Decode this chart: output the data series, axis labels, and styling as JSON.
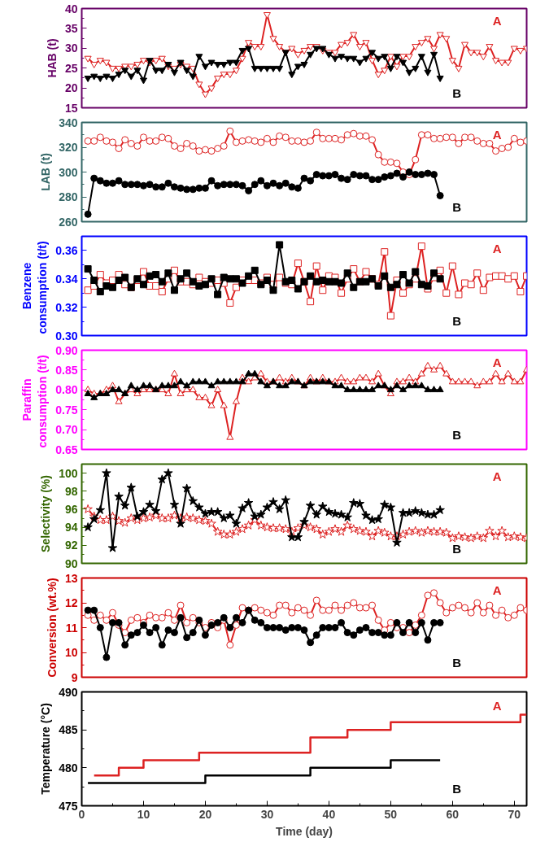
{
  "chart_data": [
    {
      "type": "line",
      "ylabel": "HAB (t)",
      "marker": "triangle_down",
      "xlim": [
        0,
        72
      ],
      "ylim": [
        15,
        40
      ],
      "yticks": [
        15,
        20,
        25,
        30,
        35,
        40
      ],
      "tick_labels": "y",
      "x": [
        1,
        2,
        3,
        4,
        5,
        6,
        7,
        8,
        9,
        10,
        11,
        12,
        13,
        14,
        15,
        16,
        17,
        18,
        19,
        20,
        21,
        22,
        23,
        24,
        25,
        26,
        27,
        28,
        29,
        30,
        31,
        32,
        33,
        34,
        35,
        36,
        37,
        38,
        39,
        40,
        41,
        42,
        43,
        44,
        45,
        46,
        47,
        48,
        49,
        50,
        51,
        52,
        53,
        54,
        55,
        56,
        57,
        58,
        59,
        60,
        61,
        62,
        63,
        64,
        65,
        66,
        67,
        68,
        69,
        70,
        71,
        72
      ],
      "series": [
        {
          "name": "A",
          "color": "#dd2222",
          "values": [
            27.5,
            26,
            27,
            26.5,
            25,
            25,
            25.5,
            25.5,
            26,
            27,
            26.5,
            27,
            27.5,
            25.5,
            25,
            26,
            25.5,
            25,
            21,
            18.5,
            20,
            22.5,
            23.5,
            23.5,
            24.5,
            27.5,
            31.5,
            30.5,
            30.5,
            38.5,
            32.5,
            30.5,
            29,
            30,
            28.5,
            29.5,
            30.5,
            30.5,
            29.5,
            29,
            29,
            31,
            31.5,
            33.5,
            30.5,
            31.5,
            27,
            23.5,
            24.5,
            28,
            25.5,
            28,
            28,
            30.5,
            31.5,
            32.5,
            30,
            33.5,
            32.5,
            27,
            25,
            31,
            29,
            29,
            28,
            30.5,
            27,
            26.5,
            26.5,
            30,
            29.5,
            30
          ]
        },
        {
          "name": "B",
          "color": "#000000",
          "x": [
            1,
            2,
            3,
            4,
            5,
            6,
            7,
            8,
            9,
            10,
            11,
            12,
            13,
            14,
            15,
            16,
            17,
            18,
            19,
            20,
            21,
            22,
            23,
            24,
            25,
            26,
            27,
            28,
            29,
            30,
            31,
            32,
            33,
            34,
            35,
            36,
            37,
            38,
            39,
            40,
            41,
            42,
            43,
            44,
            45,
            46,
            47,
            48,
            49,
            50,
            51,
            52,
            53,
            54,
            55,
            56,
            57,
            58
          ],
          "values": [
            22.5,
            23,
            22.5,
            23,
            22.5,
            23.5,
            24.5,
            23,
            24.5,
            22,
            27,
            24.5,
            24.5,
            26,
            24,
            26.5,
            24.5,
            23,
            28,
            25.5,
            26.5,
            26,
            26,
            26.5,
            26.5,
            29.5,
            30,
            25,
            25,
            25,
            25,
            25,
            29,
            23.5,
            25.5,
            26,
            28.5,
            30,
            30,
            28.5,
            27.5,
            28,
            27.5,
            27.5,
            26.5,
            27.5,
            29,
            27.5,
            28,
            25,
            28,
            26.5,
            24,
            25,
            28,
            24,
            28.5,
            22.5
          ]
        }
      ]
    },
    {
      "type": "line",
      "ylabel": "LAB (t)",
      "marker": "circle",
      "xlim": [
        0,
        72
      ],
      "ylim": [
        260,
        340
      ],
      "yticks": [
        260,
        280,
        300,
        320,
        340
      ],
      "tick_labels": "y",
      "x": [
        1,
        2,
        3,
        4,
        5,
        6,
        7,
        8,
        9,
        10,
        11,
        12,
        13,
        14,
        15,
        16,
        17,
        18,
        19,
        20,
        21,
        22,
        23,
        24,
        25,
        26,
        27,
        28,
        29,
        30,
        31,
        32,
        33,
        34,
        35,
        36,
        37,
        38,
        39,
        40,
        41,
        42,
        43,
        44,
        45,
        46,
        47,
        48,
        49,
        50,
        51,
        52,
        53,
        54,
        55,
        56,
        57,
        58,
        59,
        60,
        61,
        62,
        63,
        64,
        65,
        66,
        67,
        68,
        69,
        70,
        71,
        72
      ],
      "series": [
        {
          "name": "A",
          "color": "#dd2222",
          "values": [
            325,
            325,
            328,
            325,
            324,
            319,
            326,
            323,
            321,
            328,
            325,
            325,
            328,
            327,
            321,
            319,
            323,
            321,
            317,
            318,
            317,
            319,
            321,
            333,
            324,
            325,
            326,
            325,
            324,
            327,
            324,
            329,
            328,
            325,
            325,
            324,
            325,
            332,
            327,
            327,
            327,
            326,
            330,
            331,
            329,
            329,
            326,
            314,
            308,
            308,
            307,
            300,
            298,
            310,
            330,
            330,
            327,
            327,
            328,
            328,
            323,
            328,
            328,
            325,
            323,
            323,
            317,
            319,
            320,
            327,
            324,
            325
          ]
        },
        {
          "name": "B",
          "color": "#000000",
          "x": [
            1,
            2,
            3,
            4,
            5,
            6,
            7,
            8,
            9,
            10,
            11,
            12,
            13,
            14,
            15,
            16,
            17,
            18,
            19,
            20,
            21,
            22,
            23,
            24,
            25,
            26,
            27,
            28,
            29,
            30,
            31,
            32,
            33,
            34,
            35,
            36,
            37,
            38,
            39,
            40,
            41,
            42,
            43,
            44,
            45,
            46,
            47,
            48,
            49,
            50,
            51,
            52,
            53,
            54,
            55,
            56,
            57,
            58
          ],
          "values": [
            266,
            295,
            293,
            291,
            291,
            293,
            290,
            290,
            290,
            289,
            290,
            288,
            288,
            291,
            288,
            287,
            286,
            286,
            287,
            287,
            293,
            289,
            290,
            290,
            290,
            289,
            285,
            290,
            293,
            289,
            291,
            289,
            291,
            288,
            287,
            295,
            293,
            298,
            297,
            297,
            298,
            295,
            294,
            298,
            297,
            297,
            294,
            294,
            296,
            297,
            299,
            296,
            300,
            298,
            298,
            299,
            298,
            281
          ]
        }
      ]
    },
    {
      "type": "line",
      "ylabel": "Benzene\nconsumption  (t/t)",
      "marker": "square",
      "xlim": [
        0,
        72
      ],
      "ylim": [
        0.3,
        0.37
      ],
      "yticks": [
        {
          "value": 0.3,
          "label": "0.30"
        },
        {
          "value": 0.32,
          "label": "0.32"
        },
        {
          "value": 0.34,
          "label": "0.34"
        },
        {
          "value": 0.36,
          "label": "0.36"
        }
      ],
      "tick_labels": "y",
      "x": [
        1,
        2,
        3,
        4,
        5,
        6,
        7,
        8,
        9,
        10,
        11,
        12,
        13,
        14,
        15,
        16,
        17,
        18,
        19,
        20,
        21,
        22,
        23,
        24,
        25,
        26,
        27,
        28,
        29,
        30,
        31,
        32,
        33,
        34,
        35,
        36,
        37,
        38,
        39,
        40,
        41,
        42,
        43,
        44,
        45,
        46,
        47,
        48,
        49,
        50,
        51,
        52,
        53,
        54,
        55,
        56,
        57,
        58,
        59,
        60,
        61,
        62,
        63,
        64,
        65,
        66,
        67,
        68,
        69,
        70,
        71,
        72
      ],
      "series": [
        {
          "name": "A",
          "color": "#dd2222",
          "values": [
            0.332,
            0.335,
            0.343,
            0.337,
            0.339,
            0.343,
            0.336,
            0.334,
            0.339,
            0.345,
            0.335,
            0.335,
            0.331,
            0.34,
            0.346,
            0.338,
            0.338,
            0.336,
            0.341,
            0.338,
            0.337,
            0.339,
            0.337,
            0.323,
            0.334,
            0.339,
            0.339,
            0.339,
            0.337,
            0.341,
            0.336,
            0.341,
            0.337,
            0.336,
            0.351,
            0.338,
            0.324,
            0.349,
            0.332,
            0.342,
            0.341,
            0.33,
            0.34,
            0.347,
            0.338,
            0.345,
            0.34,
            0.336,
            0.359,
            0.314,
            0.339,
            0.33,
            0.336,
            0.34,
            0.363,
            0.333,
            0.341,
            0.346,
            0.33,
            0.349,
            0.329,
            0.337,
            0.336,
            0.344,
            0.332,
            0.341,
            0.342,
            0.342,
            0.34,
            0.342,
            0.331,
            0.342
          ]
        },
        {
          "name": "B",
          "color": "#000000",
          "x": [
            1,
            2,
            3,
            4,
            5,
            6,
            7,
            8,
            9,
            10,
            11,
            12,
            13,
            14,
            15,
            16,
            17,
            18,
            19,
            20,
            21,
            22,
            23,
            24,
            25,
            26,
            27,
            28,
            29,
            30,
            31,
            32,
            33,
            34,
            35,
            36,
            37,
            38,
            39,
            40,
            41,
            42,
            43,
            44,
            45,
            46,
            47,
            48,
            49,
            50,
            51,
            52,
            53,
            54,
            55,
            56,
            57,
            58
          ],
          "values": [
            0.347,
            0.339,
            0.331,
            0.335,
            0.334,
            0.339,
            0.341,
            0.334,
            0.34,
            0.336,
            0.342,
            0.343,
            0.338,
            0.344,
            0.332,
            0.34,
            0.344,
            0.338,
            0.335,
            0.336,
            0.34,
            0.329,
            0.341,
            0.34,
            0.34,
            0.337,
            0.342,
            0.346,
            0.336,
            0.339,
            0.332,
            0.364,
            0.338,
            0.339,
            0.333,
            0.338,
            0.342,
            0.338,
            0.339,
            0.338,
            0.338,
            0.337,
            0.344,
            0.334,
            0.338,
            0.338,
            0.34,
            0.335,
            0.342,
            0.334,
            0.336,
            0.343,
            0.337,
            0.345,
            0.336,
            0.335,
            0.344,
            0.34
          ]
        }
      ]
    },
    {
      "type": "line",
      "ylabel": "Paraffin\nconsumption  (t/t)",
      "marker": "triangle",
      "xlim": [
        0,
        72
      ],
      "ylim": [
        0.65,
        0.9
      ],
      "yticks": [
        0.65,
        {
          "value": 0.7,
          "label": "0.70"
        },
        0.75,
        {
          "value": 0.8,
          "label": "0.80"
        },
        0.85,
        {
          "value": 0.9,
          "label": "0.90"
        }
      ],
      "tick_labels": "y",
      "x": [
        1,
        2,
        3,
        4,
        5,
        6,
        7,
        8,
        9,
        10,
        11,
        12,
        13,
        14,
        15,
        16,
        17,
        18,
        19,
        20,
        21,
        22,
        23,
        24,
        25,
        26,
        27,
        28,
        29,
        30,
        31,
        32,
        33,
        34,
        35,
        36,
        37,
        38,
        39,
        40,
        41,
        42,
        43,
        44,
        45,
        46,
        47,
        48,
        49,
        50,
        51,
        52,
        53,
        54,
        55,
        56,
        57,
        58,
        59,
        60,
        61,
        62,
        63,
        64,
        65,
        66,
        67,
        68,
        69,
        70,
        71,
        72
      ],
      "series": [
        {
          "name": "A",
          "color": "#dd2222",
          "values": [
            0.8,
            0.79,
            0.79,
            0.8,
            0.81,
            0.77,
            0.79,
            0.8,
            0.79,
            0.8,
            0.8,
            0.8,
            0.8,
            0.79,
            0.84,
            0.79,
            0.8,
            0.8,
            0.78,
            0.78,
            0.76,
            0.8,
            0.76,
            0.68,
            0.77,
            0.83,
            0.82,
            0.83,
            0.84,
            0.82,
            0.82,
            0.83,
            0.82,
            0.83,
            0.82,
            0.81,
            0.83,
            0.82,
            0.83,
            0.82,
            0.82,
            0.83,
            0.82,
            0.82,
            0.83,
            0.83,
            0.82,
            0.84,
            0.81,
            0.79,
            0.82,
            0.82,
            0.83,
            0.82,
            0.84,
            0.86,
            0.85,
            0.86,
            0.84,
            0.82,
            0.82,
            0.82,
            0.82,
            0.81,
            0.82,
            0.82,
            0.84,
            0.82,
            0.84,
            0.82,
            0.82,
            0.85
          ]
        },
        {
          "name": "B",
          "color": "#000000",
          "x": [
            1,
            2,
            3,
            4,
            5,
            6,
            7,
            8,
            9,
            10,
            11,
            12,
            13,
            14,
            15,
            16,
            17,
            18,
            19,
            20,
            21,
            22,
            23,
            24,
            25,
            26,
            27,
            28,
            29,
            30,
            31,
            32,
            33,
            34,
            35,
            36,
            37,
            38,
            39,
            40,
            41,
            42,
            43,
            44,
            45,
            46,
            47,
            48,
            49,
            50,
            51,
            52,
            53,
            54,
            55,
            56,
            57,
            58
          ],
          "values": [
            0.79,
            0.78,
            0.79,
            0.79,
            0.8,
            0.8,
            0.79,
            0.81,
            0.8,
            0.81,
            0.81,
            0.8,
            0.81,
            0.81,
            0.81,
            0.82,
            0.81,
            0.82,
            0.82,
            0.82,
            0.81,
            0.82,
            0.82,
            0.82,
            0.82,
            0.82,
            0.84,
            0.84,
            0.82,
            0.81,
            0.82,
            0.81,
            0.81,
            0.82,
            0.82,
            0.81,
            0.82,
            0.82,
            0.82,
            0.82,
            0.81,
            0.81,
            0.8,
            0.8,
            0.8,
            0.8,
            0.8,
            0.81,
            0.81,
            0.8,
            0.81,
            0.8,
            0.81,
            0.81,
            0.81,
            0.8,
            0.8,
            0.8
          ]
        }
      ]
    },
    {
      "type": "line",
      "ylabel": "Selectivity (%)",
      "marker": "star",
      "xlim": [
        0,
        72
      ],
      "ylim": [
        90,
        101
      ],
      "yticks": [
        90,
        92,
        94,
        96,
        98,
        100
      ],
      "tick_labels": "y",
      "x": [
        1,
        2,
        3,
        4,
        5,
        6,
        7,
        8,
        9,
        10,
        11,
        12,
        13,
        14,
        15,
        16,
        17,
        18,
        19,
        20,
        21,
        22,
        23,
        24,
        25,
        26,
        27,
        28,
        29,
        30,
        31,
        32,
        33,
        34,
        35,
        36,
        37,
        38,
        39,
        40,
        41,
        42,
        43,
        44,
        45,
        46,
        47,
        48,
        49,
        50,
        51,
        52,
        53,
        54,
        55,
        56,
        57,
        58,
        59,
        60,
        61,
        62,
        63,
        64,
        65,
        66,
        67,
        68,
        69,
        70,
        71,
        72
      ],
      "series": [
        {
          "name": "A",
          "color": "#dd2222",
          "values": [
            96.0,
            95.2,
            94.8,
            94.8,
            95.2,
            94.7,
            94.5,
            95.0,
            94.8,
            95.0,
            95.1,
            95.3,
            95.0,
            95.0,
            95.3,
            95.0,
            95.1,
            95.0,
            94.8,
            94.7,
            94.4,
            93.5,
            93.2,
            93.2,
            93.5,
            93.8,
            94.2,
            94.8,
            94.2,
            94.0,
            93.9,
            93.9,
            93.8,
            93.5,
            93.9,
            94.2,
            94.0,
            93.8,
            93.2,
            93.5,
            93.8,
            93.5,
            94.2,
            93.8,
            93.6,
            93.5,
            93.0,
            93.6,
            93.4,
            93.0,
            93.0,
            93.2,
            93.5,
            93.6,
            93.4,
            93.6,
            93.5,
            93.5,
            93.4,
            92.8,
            93.0,
            92.9,
            92.8,
            93.0,
            92.8,
            93.6,
            93.0,
            93.6,
            92.9,
            93.0,
            92.9,
            92.8
          ]
        },
        {
          "name": "B",
          "color": "#000000",
          "x": [
            1,
            2,
            3,
            4,
            5,
            6,
            7,
            8,
            9,
            10,
            11,
            12,
            13,
            14,
            15,
            16,
            17,
            18,
            19,
            20,
            21,
            22,
            23,
            24,
            25,
            26,
            27,
            28,
            29,
            30,
            31,
            32,
            33,
            34,
            35,
            36,
            37,
            38,
            39,
            40,
            41,
            42,
            43,
            44,
            45,
            46,
            47,
            48,
            49,
            50,
            51,
            52,
            53,
            54,
            55,
            56,
            57,
            58
          ],
          "values": [
            94.0,
            94.9,
            95.9,
            100.0,
            91.7,
            97.4,
            96.4,
            98.4,
            95.2,
            95.7,
            96.5,
            95.8,
            99.3,
            100.0,
            96.5,
            94.4,
            98.3,
            96.9,
            96.2,
            95.5,
            95.7,
            95.7,
            95.0,
            95.3,
            94.4,
            96.1,
            96.7,
            95.2,
            95.4,
            96.2,
            96.8,
            96.0,
            97.0,
            92.9,
            92.9,
            94.6,
            96.4,
            95.4,
            96.3,
            95.7,
            95.5,
            95.4,
            95.1,
            96.7,
            96.6,
            95.3,
            94.8,
            94.9,
            96.5,
            96.2,
            92.3,
            95.6,
            95.6,
            95.8,
            95.6,
            95.4,
            95.4,
            95.9
          ]
        }
      ]
    },
    {
      "type": "line",
      "ylabel": "Conversion (wt.%)",
      "marker": "circle",
      "xlim": [
        0,
        72
      ],
      "ylim": [
        9,
        13
      ],
      "yticks": [
        9,
        10,
        11,
        12,
        13
      ],
      "tick_labels": "y",
      "x": [
        1,
        2,
        3,
        4,
        5,
        6,
        7,
        8,
        9,
        10,
        11,
        12,
        13,
        14,
        15,
        16,
        17,
        18,
        19,
        20,
        21,
        22,
        23,
        24,
        25,
        26,
        27,
        28,
        29,
        30,
        31,
        32,
        33,
        34,
        35,
        36,
        37,
        38,
        39,
        40,
        41,
        42,
        43,
        44,
        45,
        46,
        47,
        48,
        49,
        50,
        51,
        52,
        53,
        54,
        55,
        56,
        57,
        58,
        59,
        60,
        61,
        62,
        63,
        64,
        65,
        66,
        67,
        68,
        69,
        70,
        71,
        72
      ],
      "series": [
        {
          "name": "A",
          "color": "#dd2222",
          "values": [
            11.5,
            11.3,
            11.5,
            11.3,
            11.6,
            11.1,
            10.8,
            11.3,
            11.4,
            11.2,
            11.5,
            11.4,
            11.4,
            11.6,
            11.3,
            11.9,
            11.2,
            11.4,
            11.2,
            11.0,
            11.2,
            11.0,
            11.3,
            10.3,
            11.1,
            11.8,
            11.7,
            11.8,
            11.7,
            11.6,
            11.5,
            11.9,
            11.9,
            11.6,
            11.8,
            11.7,
            11.5,
            12.1,
            11.7,
            11.7,
            11.9,
            11.7,
            11.9,
            12.0,
            11.8,
            11.8,
            11.9,
            11.3,
            10.9,
            11.2,
            11.0,
            11.0,
            10.8,
            11.1,
            11.5,
            12.3,
            12.4,
            12.0,
            11.6,
            11.8,
            11.9,
            11.8,
            11.6,
            12.0,
            11.6,
            11.9,
            11.5,
            11.7,
            11.4,
            11.5,
            11.8,
            11.7
          ]
        },
        {
          "name": "B",
          "color": "#000000",
          "x": [
            1,
            2,
            3,
            4,
            5,
            6,
            7,
            8,
            9,
            10,
            11,
            12,
            13,
            14,
            15,
            16,
            17,
            18,
            19,
            20,
            21,
            22,
            23,
            24,
            25,
            26,
            27,
            28,
            29,
            30,
            31,
            32,
            33,
            34,
            35,
            36,
            37,
            38,
            39,
            40,
            41,
            42,
            43,
            44,
            45,
            46,
            47,
            48,
            49,
            50,
            51,
            52,
            53,
            54,
            55,
            56,
            57,
            58
          ],
          "values": [
            11.7,
            11.7,
            11.0,
            9.8,
            11.2,
            11.2,
            10.3,
            10.7,
            10.8,
            11.1,
            10.8,
            11.0,
            10.3,
            10.9,
            10.8,
            11.4,
            10.6,
            10.8,
            11.3,
            10.7,
            11.1,
            11.2,
            11.4,
            11.0,
            11.4,
            11.2,
            11.7,
            11.3,
            11.2,
            11.0,
            11.0,
            11.0,
            10.9,
            11.0,
            11.0,
            10.9,
            10.4,
            10.7,
            11.0,
            11.0,
            11.0,
            11.2,
            10.8,
            10.7,
            10.9,
            11.0,
            10.8,
            10.8,
            10.7,
            10.7,
            11.2,
            10.8,
            11.2,
            10.8,
            11.2,
            10.5,
            11.2,
            11.2
          ]
        }
      ]
    },
    {
      "type": "step",
      "ylabel": "Temperature (°C)",
      "xlabel": "Time (day)",
      "xlim": [
        0,
        72
      ],
      "ylim": [
        475,
        490
      ],
      "xticks": [
        0,
        10,
        20,
        30,
        40,
        50,
        60,
        70
      ],
      "yticks": [
        475,
        480,
        485,
        490
      ],
      "series": [
        {
          "name": "A",
          "color": "#dd2222",
          "x": [
            2,
            6,
            10,
            19,
            37,
            43,
            50,
            71,
            72
          ],
          "values": [
            479,
            480,
            481,
            482,
            484,
            485,
            486,
            487,
            487
          ]
        },
        {
          "name": "B",
          "color": "#000000",
          "x": [
            1,
            20,
            37,
            50,
            58
          ],
          "values": [
            478,
            479,
            480,
            481,
            481
          ]
        }
      ]
    }
  ]
}
